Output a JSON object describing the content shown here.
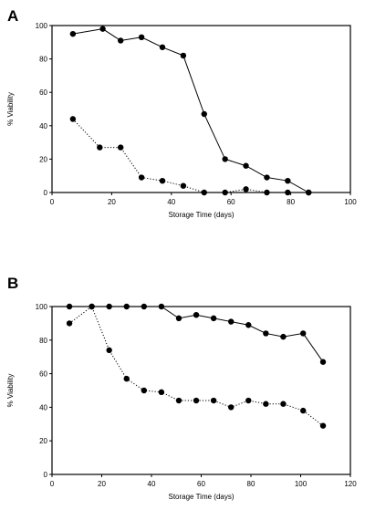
{
  "chart_data": [
    {
      "panel_label": "A",
      "type": "line",
      "xlabel": "Storage Time (days)",
      "ylabel": "% Viability",
      "xlim": [
        0,
        100
      ],
      "ylim": [
        0,
        100
      ],
      "xticks": [
        0,
        20,
        40,
        60,
        80,
        100
      ],
      "yticks": [
        0,
        20,
        40,
        60,
        80,
        100
      ],
      "grid": false,
      "series": [
        {
          "line_style": "solid",
          "color": "#000000",
          "x": [
            7,
            17,
            23,
            30,
            37,
            44,
            51,
            58,
            65,
            72,
            79,
            86
          ],
          "y": [
            95,
            98,
            91,
            93,
            87,
            82,
            47,
            20,
            16,
            9,
            7,
            0
          ]
        },
        {
          "line_style": "dotted",
          "color": "#000000",
          "x": [
            7,
            16,
            23,
            30,
            37,
            44,
            51,
            58,
            65,
            72,
            79,
            86
          ],
          "y": [
            44,
            27,
            27,
            9,
            7,
            4,
            0,
            0,
            2,
            0,
            0,
            0
          ]
        }
      ]
    },
    {
      "panel_label": "B",
      "type": "line",
      "xlabel": "Storage Time (days)",
      "ylabel": "% Viability",
      "xlim": [
        0,
        120
      ],
      "ylim": [
        0,
        100
      ],
      "xticks": [
        0,
        20,
        40,
        60,
        80,
        100,
        120
      ],
      "yticks": [
        0,
        20,
        40,
        60,
        80,
        100
      ],
      "grid": false,
      "series": [
        {
          "line_style": "solid",
          "color": "#000000",
          "x": [
            7,
            16,
            23,
            30,
            37,
            44,
            51,
            58,
            65,
            72,
            79,
            86,
            93,
            101,
            109
          ],
          "y": [
            100,
            100,
            100,
            100,
            100,
            100,
            93,
            95,
            93,
            91,
            89,
            84,
            82,
            84,
            67
          ]
        },
        {
          "line_style": "dotted",
          "color": "#000000",
          "x": [
            7,
            16,
            23,
            30,
            37,
            44,
            51,
            58,
            65,
            72,
            79,
            86,
            93,
            101,
            109
          ],
          "y": [
            90,
            100,
            74,
            57,
            50,
            49,
            44,
            44,
            44,
            40,
            44,
            42,
            42,
            38,
            29
          ]
        }
      ]
    }
  ]
}
